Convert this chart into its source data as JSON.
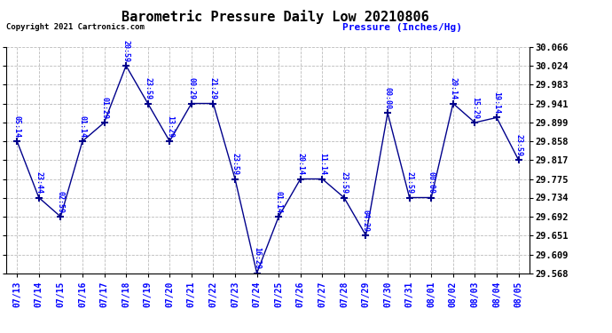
{
  "title": "Barometric Pressure Daily Low 20210806",
  "ylabel": "Pressure (Inches/Hg)",
  "copyright": "Copyright 2021 Cartronics.com",
  "background_color": "#ffffff",
  "line_color": "#00008B",
  "grid_color": "#bbbbbb",
  "ylim": [
    29.568,
    30.066
  ],
  "yticks": [
    29.568,
    29.609,
    29.651,
    29.692,
    29.734,
    29.775,
    29.817,
    29.858,
    29.899,
    29.941,
    29.983,
    30.024,
    30.066
  ],
  "dates": [
    "07/13",
    "07/14",
    "07/15",
    "07/16",
    "07/17",
    "07/18",
    "07/19",
    "07/20",
    "07/21",
    "07/22",
    "07/23",
    "07/24",
    "07/25",
    "07/26",
    "07/27",
    "07/28",
    "07/29",
    "07/30",
    "07/31",
    "08/01",
    "08/02",
    "08/03",
    "08/04",
    "08/05"
  ],
  "values": [
    29.858,
    29.734,
    29.692,
    29.858,
    29.899,
    30.024,
    29.941,
    29.858,
    29.941,
    29.941,
    29.775,
    29.568,
    29.692,
    29.775,
    29.775,
    29.734,
    29.651,
    29.92,
    29.734,
    29.734,
    29.941,
    29.899,
    29.91,
    29.817
  ],
  "annotations": [
    "05:14",
    "23:44",
    "02:59",
    "01:14",
    "01:29",
    "20:59",
    "23:59",
    "13:29",
    "00:29",
    "21:29",
    "23:59",
    "16:29",
    "01:14",
    "20:14",
    "11:14",
    "23:59",
    "04:29",
    "00:00",
    "21:59",
    "00:00",
    "20:14",
    "15:29",
    "19:14",
    "23:59"
  ]
}
